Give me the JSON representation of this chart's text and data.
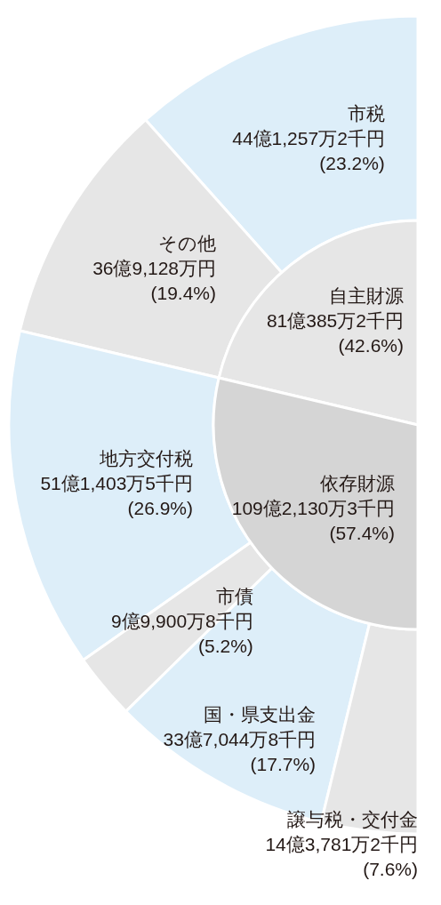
{
  "chart_data": [
    {
      "type": "donut",
      "categories": [
        "市税",
        "その他",
        "地方交付税",
        "市債",
        "国・県支出金",
        "譲与税・交付金"
      ],
      "values": [
        23.2,
        19.4,
        26.9,
        5.2,
        17.7,
        7.6
      ],
      "colors": [
        "#ddeef9",
        "#e6e6e6",
        "#ddeef9",
        "#e6e6e6",
        "#ddeef9",
        "#e6e6e6"
      ],
      "value_labels": [
        "44億1,257万2千円 (23.2%)",
        "36億9,128万円 (19.4%)",
        "51億1,403万5千円 (26.9%)",
        "9億9,900万8千円 (5.2%)",
        "33億7,044万8千円 (17.7%)",
        "14億3,781万2千円 (7.6%)"
      ]
    },
    {
      "type": "pie",
      "categories": [
        "自主財源",
        "依存財源"
      ],
      "values": [
        42.6,
        57.4
      ],
      "colors": [
        "#e6e6e6",
        "#d5d5d5"
      ],
      "value_labels": [
        "81億385万2千円 (42.6%)",
        "109億2,130万3千円 (57.4%)"
      ]
    }
  ]
}
